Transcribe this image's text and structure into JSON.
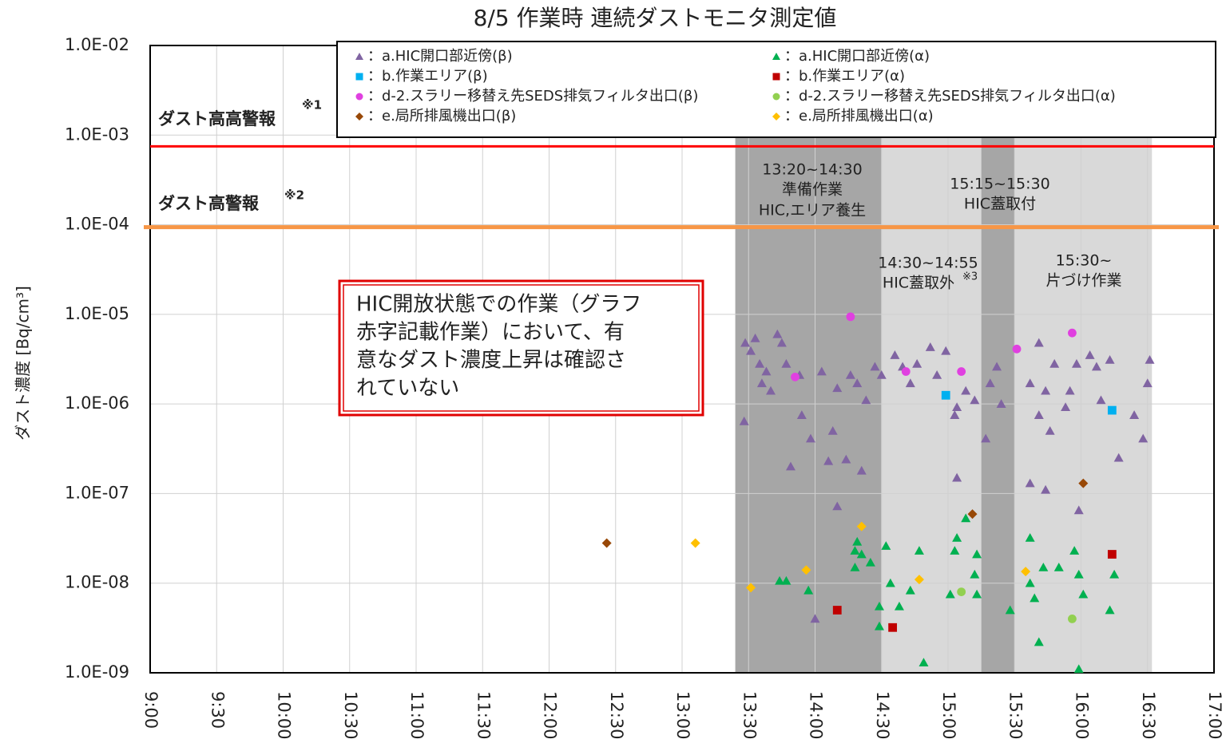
{
  "chart_data": {
    "type": "scatter",
    "title": "8/5 作業時 連続ダストモニタ測定値",
    "y_label": "ダスト濃度 [Bq/cm³]",
    "log_y": true,
    "grid": true,
    "legend": "top-right",
    "xlim": [
      540,
      1020
    ],
    "xticks": [
      {
        "value": 540,
        "label": "9:00"
      },
      {
        "value": 570,
        "label": "9:30"
      },
      {
        "value": 600,
        "label": "10:00"
      },
      {
        "value": 630,
        "label": "10:30"
      },
      {
        "value": 660,
        "label": "11:00"
      },
      {
        "value": 690,
        "label": "11:30"
      },
      {
        "value": 720,
        "label": "12:00"
      },
      {
        "value": 750,
        "label": "12:30"
      },
      {
        "value": 780,
        "label": "13:00"
      },
      {
        "value": 810,
        "label": "13:30"
      },
      {
        "value": 840,
        "label": "14:00"
      },
      {
        "value": 870,
        "label": "14:30"
      },
      {
        "value": 900,
        "label": "15:00"
      },
      {
        "value": 930,
        "label": "15:30"
      },
      {
        "value": 960,
        "label": "16:00"
      },
      {
        "value": 990,
        "label": "16:30"
      },
      {
        "value": 1020,
        "label": "17:00"
      }
    ],
    "ylim": [
      1e-09,
      0.01
    ],
    "yticks": [
      {
        "value": 1e-09,
        "label": "1.0E-09"
      },
      {
        "value": 1e-08,
        "label": "1.0E-08"
      },
      {
        "value": 1e-07,
        "label": "1.0E-07"
      },
      {
        "value": 1e-06,
        "label": "1.0E-06"
      },
      {
        "value": 1e-05,
        "label": "1.0E-05"
      },
      {
        "value": 0.0001,
        "label": "1.0E-04"
      },
      {
        "value": 0.001,
        "label": "1.0E-03"
      },
      {
        "value": 0.01,
        "label": "1.0E-02"
      }
    ],
    "regions": [
      {
        "start": 804,
        "end": 870,
        "color": "#a6a6a6"
      },
      {
        "start": 870,
        "end": 915,
        "color": "#d9d9d9"
      },
      {
        "start": 915,
        "end": 930,
        "color": "#a6a6a6"
      },
      {
        "start": 930,
        "end": 992,
        "color": "#d9d9d9"
      }
    ],
    "hlines": [
      {
        "label": "ダスト高高警報",
        "note": "※1",
        "value": 0.00075,
        "color": "#ff0000"
      },
      {
        "label": "ダスト高警報",
        "note": "※2",
        "value": 9.4e-05,
        "color": "#f79646"
      }
    ],
    "annotations": [
      {
        "text": "13:20~14:30",
        "color": "#404040"
      },
      {
        "text": "準備作業",
        "color": "#404040"
      },
      {
        "text": "HIC,エリア養生",
        "color": "#404040"
      },
      {
        "text": "15:15~15:30",
        "color": "#ff0000"
      },
      {
        "text": "HIC蓋取付",
        "color": "#ff0000"
      },
      {
        "text": "14:30~14:55",
        "color": "#ff0000"
      },
      {
        "text": "HIC蓋取外",
        "color": "#ff0000"
      },
      {
        "text": "※3",
        "color": "#ff0000"
      },
      {
        "text": "15:30~",
        "color": "#404040"
      },
      {
        "text": "片づけ作業",
        "color": "#404040"
      }
    ],
    "callout": [
      "HIC開放状態での作業（グラフ",
      "赤字記載作業）において、有",
      "意なダスト濃度上昇は確認さ",
      "れていない"
    ],
    "series": [
      {
        "name": "：a.HIC開口部近傍(β)",
        "color": "#8064a2",
        "marker": "triangle",
        "x": [
          808.5,
          811,
          813,
          815,
          816,
          818,
          820,
          808,
          823,
          825,
          827,
          829,
          833,
          834,
          838,
          843,
          846,
          848,
          850,
          854,
          856,
          859,
          861,
          863,
          850,
          867,
          870,
          876,
          879.5,
          883,
          886,
          892,
          895,
          899,
          903,
          904,
          908,
          912,
          917,
          919,
          924,
          922,
          904,
          840,
          941,
          937,
          941,
          944,
          948,
          946,
          953,
          955,
          958,
          964,
          967,
          969,
          973,
          977,
          984,
          988,
          991,
          990,
          937,
          944,
          959
        ],
        "values": [
          4.8e-06,
          3.9e-06,
          5.4e-06,
          2.8e-06,
          1.7e-06,
          2.3e-06,
          1.4e-06,
          6.4e-07,
          6e-06,
          4.8e-06,
          2.8e-06,
          2e-07,
          2.1e-06,
          7.5e-07,
          4.1e-07,
          2.3e-06,
          2.3e-07,
          5e-07,
          1.5e-06,
          2.4e-07,
          2.1e-06,
          1.7e-06,
          1.8e-07,
          1.1e-06,
          7.2e-08,
          2.6e-06,
          2.1e-06,
          3.5e-06,
          2.6e-06,
          1.7e-06,
          2.8e-06,
          4.3e-06,
          2.1e-06,
          3.9e-06,
          7.5e-07,
          9.2e-07,
          1.4e-06,
          1.1e-06,
          4.1e-07,
          1.7e-06,
          1e-06,
          2.6e-06,
          1.5e-07,
          4e-09,
          4.8e-06,
          1.7e-06,
          7.5e-07,
          1.4e-06,
          2.8e-06,
          5e-07,
          9.2e-07,
          1.4e-06,
          2.8e-06,
          3.5e-06,
          2.6e-06,
          1.1e-06,
          3.1e-06,
          2.5e-07,
          7.5e-07,
          4.1e-07,
          3.1e-06,
          1.7e-06,
          1.3e-07,
          1.1e-07,
          6.5e-08
        ]
      },
      {
        "name": "：a.HIC開口部近傍(α)",
        "color": "#00b050",
        "marker": "triangle",
        "x": [
          824,
          827,
          837,
          858,
          859,
          861,
          858,
          865,
          869,
          872,
          874,
          869,
          883,
          887,
          889,
          901,
          903,
          904,
          908,
          912,
          913,
          928,
          937,
          939,
          937,
          941,
          943,
          950,
          957,
          959,
          961,
          959,
          973,
          975,
          878,
          913
        ],
        "values": [
          1.06e-08,
          1.06e-08,
          8.3e-09,
          2.3e-08,
          2.9e-08,
          2.1e-08,
          1.5e-08,
          1.7e-08,
          5.5e-09,
          2.6e-08,
          1e-08,
          3.3e-09,
          8.3e-09,
          2.3e-08,
          1.3e-09,
          7.5e-09,
          2.3e-08,
          3.2e-08,
          5.3e-08,
          1.25e-08,
          7.5e-09,
          5e-09,
          3.2e-08,
          6.8e-09,
          1e-08,
          2.2e-09,
          1.5e-08,
          1.5e-08,
          2.3e-08,
          1.25e-08,
          7.5e-09,
          1.1e-09,
          5e-09,
          1.25e-08,
          5.5e-09,
          2.1e-08
        ]
      },
      {
        "name": "：b.作業エリア(β)",
        "color": "#00b0f0",
        "marker": "square",
        "x": [
          899,
          974
        ],
        "values": [
          1.25e-06,
          8.5e-07
        ]
      },
      {
        "name": "：b.作業エリア(α)",
        "color": "#c00000",
        "marker": "square",
        "x": [
          850,
          875,
          974
        ],
        "values": [
          5e-09,
          3.2e-09,
          2.1e-08
        ]
      },
      {
        "name": "：d-2.スラリー移替え先SEDS排気フィルタ出口(β)",
        "color": "#e040e0",
        "marker": "circle",
        "x": [
          856,
          831,
          881,
          906,
          931,
          956
        ],
        "values": [
          9.4e-06,
          2e-06,
          2.3e-06,
          2.3e-06,
          4.1e-06,
          6.2e-06
        ]
      },
      {
        "name": "：d-2.スラリー移替え先SEDS排気フィルタ出口(α)",
        "color": "#92d050",
        "marker": "circle",
        "x": [
          906,
          956
        ],
        "values": [
          8e-09,
          4e-09
        ]
      },
      {
        "name": "：e.局所排風機出口(β)",
        "color": "#984807",
        "marker": "diamond",
        "x": [
          746,
          911,
          961
        ],
        "values": [
          2.8e-08,
          5.9e-08,
          1.3e-07
        ]
      },
      {
        "name": "：e.局所排風機出口(α)",
        "color": "#ffc000",
        "marker": "diamond",
        "x": [
          786,
          811,
          836,
          861,
          887,
          935
        ],
        "values": [
          2.8e-08,
          8.9e-09,
          1.4e-08,
          4.3e-08,
          1.1e-08,
          1.35e-08
        ]
      }
    ]
  }
}
